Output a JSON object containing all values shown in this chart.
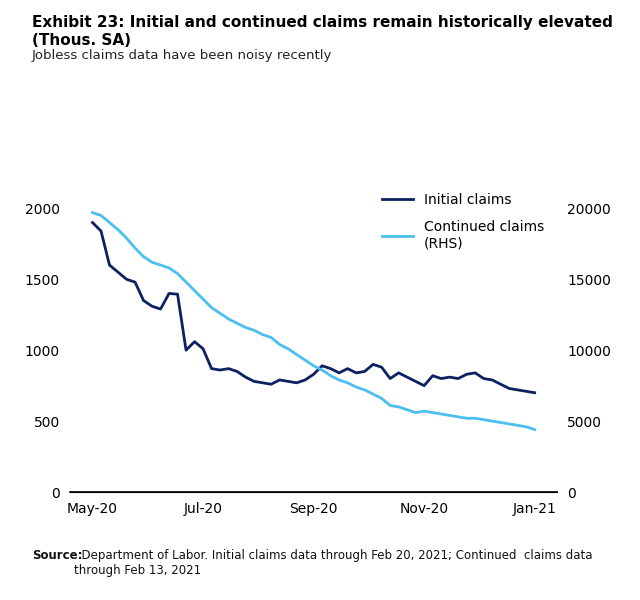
{
  "title_line1": "Exhibit 23: Initial and continued claims remain historically elevated",
  "title_line2": "(Thous. SA)",
  "subtitle": "Jobless claims data have been noisy recently",
  "source_bold": "Source:",
  "source_rest": "  Department of Labor. Initial claims data through Feb 20, 2021; Continued  claims data\nthrough Feb 13, 2021",
  "legend_labels": [
    "Initial claims",
    "Continued claims\n(RHS)"
  ],
  "initial_color": "#0d2060",
  "continued_color": "#4bbfef",
  "background_color": "#ffffff",
  "ylim_left": [
    0,
    2200
  ],
  "ylim_right": [
    0,
    22000
  ],
  "yticks_left": [
    0,
    500,
    1000,
    1500,
    2000
  ],
  "yticks_right": [
    0,
    5000,
    10000,
    15000,
    20000
  ],
  "xtick_labels": [
    "May-20",
    "Jul-20",
    "Sep-20",
    "Nov-20",
    "Jan-21"
  ],
  "initial_claims": [
    1900,
    1840,
    1600,
    1550,
    1500,
    1480,
    1350,
    1310,
    1290,
    1400,
    1395,
    1000,
    1060,
    1010,
    870,
    860,
    870,
    850,
    810,
    780,
    770,
    760,
    790,
    780,
    770,
    790,
    830,
    890,
    870,
    840,
    870,
    840,
    850,
    900,
    880,
    800,
    840,
    810,
    780,
    750,
    820,
    800,
    810,
    800,
    830,
    840,
    800,
    790,
    760,
    730,
    720,
    710,
    700
  ],
  "continued_claims": [
    19700,
    19500,
    19000,
    18500,
    17900,
    17200,
    16600,
    16200,
    16000,
    15800,
    15400,
    14800,
    14200,
    13600,
    13000,
    12600,
    12200,
    11900,
    11600,
    11400,
    11100,
    10900,
    10400,
    10100,
    9700,
    9300,
    8900,
    8600,
    8200,
    7900,
    7700,
    7400,
    7200,
    6900,
    6600,
    6100,
    6000,
    5800,
    5600,
    5700,
    5600,
    5500,
    5400,
    5300,
    5200,
    5200,
    5100,
    5000,
    4900,
    4800,
    4700,
    4600,
    4400
  ]
}
